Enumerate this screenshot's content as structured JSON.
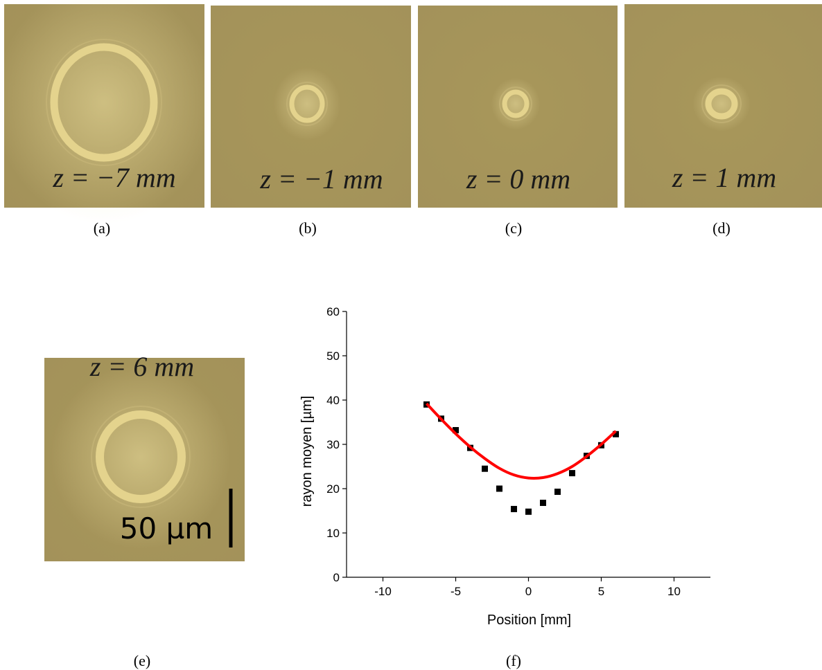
{
  "panels": [
    {
      "annotation": "z = −7 mm",
      "caption": "(a)"
    },
    {
      "annotation": "z = −1 mm",
      "caption": "(b)"
    },
    {
      "annotation": "z = 0 mm",
      "caption": "(c)"
    },
    {
      "annotation": "z = 1 mm",
      "caption": "(d)"
    },
    {
      "annotation": "z = 6 mm",
      "caption": "(e)",
      "scale_bar": "50 µm"
    }
  ],
  "chart_caption": "(f)",
  "chart_data": {
    "type": "scatter",
    "xlabel": "Position [mm]",
    "ylabel": "rayon moyen [µm]",
    "xlim": [
      -12.5,
      12.5
    ],
    "ylim": [
      0,
      60
    ],
    "xticks": [
      -10,
      -5,
      0,
      5,
      10
    ],
    "yticks": [
      0,
      10,
      20,
      30,
      40,
      50,
      60
    ],
    "series": [
      {
        "type": "scatter",
        "color": "#000000",
        "x": [
          -7,
          -6,
          -5,
          -4,
          -3,
          -2,
          -1,
          0,
          1,
          2,
          3,
          4,
          5,
          6
        ],
        "values": [
          39,
          35.8,
          33.2,
          29.2,
          24.5,
          20,
          15.4,
          14.8,
          16.8,
          19.3,
          23.5,
          27.4,
          29.8,
          32.3
        ]
      },
      {
        "type": "line",
        "color": "#ff0000",
        "x": [
          -7,
          -6,
          -5,
          -4,
          -3,
          -2,
          -1,
          0,
          1,
          2,
          3,
          4,
          5,
          6
        ],
        "values": [
          39.2,
          35.7,
          32.4,
          29.4,
          26.8,
          24.6,
          23.1,
          22.4,
          22.5,
          23.4,
          25.0,
          27.3,
          30.0,
          33.0
        ]
      }
    ]
  }
}
